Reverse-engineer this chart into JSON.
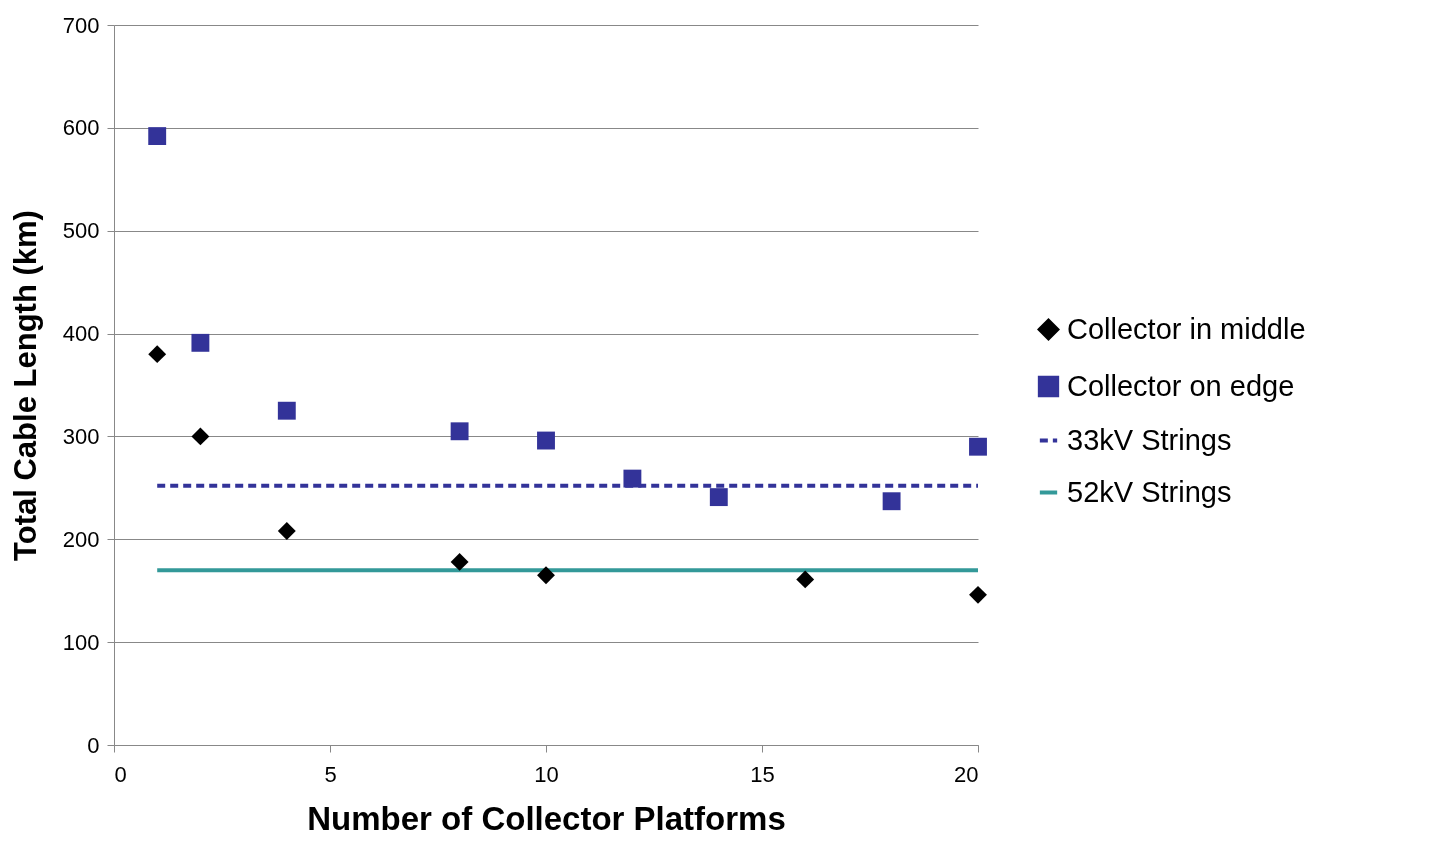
{
  "chart_data": {
    "type": "scatter",
    "xlabel": "Number of Collector Platforms",
    "ylabel": "Total Cable Length (km)",
    "xlim": [
      0,
      20
    ],
    "xticks": [
      0,
      5,
      10,
      15,
      20
    ],
    "ylim": [
      0,
      700
    ],
    "yticks": [
      0,
      100,
      200,
      300,
      400,
      500,
      600,
      700
    ],
    "grid": "y",
    "legend": "right",
    "series": [
      {
        "name": "Collector in middle",
        "type": "scatter",
        "marker": "diamond",
        "color": "#000000",
        "x": [
          1,
          2,
          4,
          8,
          10,
          16,
          20
        ],
        "values": [
          380,
          300,
          208,
          178,
          165,
          161,
          146
        ]
      },
      {
        "name": "Collector on edge",
        "type": "scatter",
        "marker": "square",
        "color": "#333399",
        "x": [
          1,
          2,
          4,
          8,
          10,
          12,
          14,
          18,
          20
        ],
        "values": [
          592,
          391,
          325,
          305,
          296,
          259,
          241,
          237,
          290
        ]
      },
      {
        "name": "33kV Strings",
        "type": "line",
        "marker": "none",
        "line_style": "dashed",
        "color": "#333399",
        "x": [
          1,
          20
        ],
        "values": [
          252,
          252
        ]
      },
      {
        "name": "52kV Strings",
        "type": "line",
        "marker": "none",
        "line_style": "solid",
        "color": "#339999",
        "x": [
          1,
          20
        ],
        "values": [
          170,
          170
        ]
      }
    ]
  }
}
